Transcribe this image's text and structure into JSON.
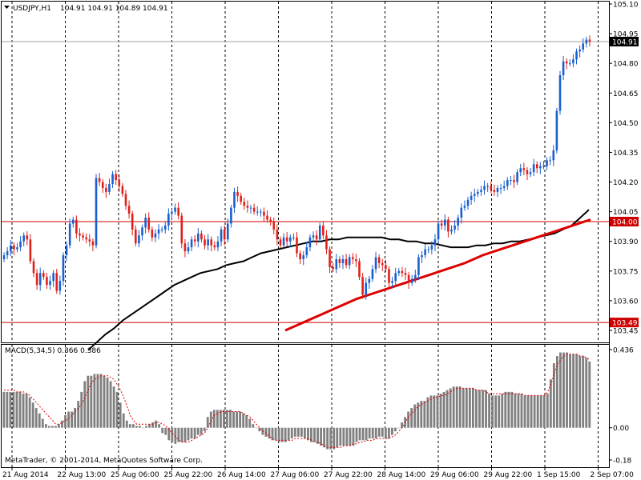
{
  "chart_data": {
    "type": "candlestick",
    "title": "USDJPY,H1",
    "ohlc_header": "104.91 104.91 104.89 104.91",
    "symbol": "USDJPY",
    "timeframe": "H1",
    "price_axis": {
      "ylim": [
        103.42,
        105.1
      ],
      "ticks": [
        "105.10",
        "104.95",
        "104.80",
        "104.65",
        "104.50",
        "104.35",
        "104.20",
        "104.05",
        "103.90",
        "103.75",
        "103.60",
        "103.45"
      ]
    },
    "current_price": {
      "value": 104.91,
      "label": "104.91"
    },
    "horizontal_levels": [
      {
        "value": 104.0,
        "label": "104.00",
        "color": "#cc0000"
      },
      {
        "value": 103.49,
        "label": "103.49",
        "color": "#cc0000"
      }
    ],
    "time_axis": {
      "labels": [
        "21 Aug 2014",
        "22 Aug 13:00",
        "25 Aug 06:00",
        "25 Aug 22:00",
        "26 Aug 14:00",
        "27 Aug 06:00",
        "27 Aug 22:00",
        "28 Aug 14:00",
        "29 Aug 06:00",
        "29 Aug 22:00",
        "1 Sep 15:00",
        "2 Sep 07:00"
      ]
    },
    "candles_close": [
      103.83,
      103.85,
      103.88,
      103.86,
      103.87,
      103.9,
      103.93,
      103.91,
      103.8,
      103.74,
      103.68,
      103.74,
      103.72,
      103.68,
      103.7,
      103.74,
      103.65,
      103.7,
      103.83,
      103.88,
      103.99,
      104.01,
      103.94,
      103.93,
      103.92,
      103.91,
      103.9,
      103.88,
      104.22,
      104.2,
      104.17,
      104.15,
      104.19,
      104.24,
      104.21,
      104.18,
      104.14,
      104.08,
      104.04,
      103.96,
      103.89,
      103.93,
      103.97,
      104.02,
      103.96,
      103.92,
      103.94,
      103.96,
      103.96,
      103.98,
      104.04,
      104.05,
      104.07,
      104.03,
      103.89,
      103.85,
      103.87,
      103.91,
      103.9,
      103.94,
      103.91,
      103.88,
      103.91,
      103.88,
      103.87,
      103.9,
      103.96,
      103.91,
      103.99,
      104.07,
      104.15,
      104.13,
      104.1,
      104.08,
      104.07,
      104.07,
      104.05,
      104.05,
      104.05,
      104.03,
      104.01,
      104.0,
      103.96,
      103.91,
      103.88,
      103.92,
      103.9,
      103.92,
      103.92,
      103.84,
      103.81,
      103.83,
      103.87,
      103.92,
      103.93,
      103.91,
      103.98,
      103.93,
      103.86,
      103.77,
      103.76,
      103.81,
      103.79,
      103.81,
      103.78,
      103.82,
      103.81,
      103.8,
      103.72,
      103.63,
      103.69,
      103.71,
      103.76,
      103.82,
      103.79,
      103.78,
      103.76,
      103.69,
      103.7,
      103.74,
      103.75,
      103.74,
      103.73,
      103.69,
      103.71,
      103.73,
      103.82,
      103.83,
      103.86,
      103.86,
      103.88,
      103.91,
      103.99,
      103.98,
      104.01,
      103.95,
      103.96,
      103.98,
      104.02,
      104.07,
      104.08,
      104.11,
      104.13,
      104.14,
      104.15,
      104.16,
      104.18,
      104.18,
      104.16,
      104.15,
      104.17,
      104.17,
      104.18,
      104.21,
      104.21,
      104.2,
      104.25,
      104.27,
      104.26,
      104.24,
      104.25,
      104.29,
      104.27,
      104.28,
      104.28,
      104.31,
      104.31,
      104.36,
      104.56,
      104.74,
      104.81,
      104.8,
      104.8,
      104.82,
      104.86,
      104.87,
      104.9,
      104.92,
      104.91
    ],
    "moving_averages": [
      {
        "color": "#000000",
        "values": [
          103.35,
          103.39,
          103.43,
          103.46,
          103.5,
          103.53,
          103.56,
          103.59,
          103.62,
          103.65,
          103.68,
          103.7,
          103.72,
          103.74,
          103.75,
          103.76,
          103.78,
          103.79,
          103.8,
          103.82,
          103.84,
          103.85,
          103.86,
          103.87,
          103.88,
          103.89,
          103.9,
          103.9,
          103.91,
          103.91,
          103.92,
          103.92,
          103.92,
          103.92,
          103.92,
          103.91,
          103.91,
          103.9,
          103.9,
          103.89,
          103.89,
          103.88,
          103.87,
          103.87,
          103.87,
          103.88,
          103.88,
          103.89,
          103.89,
          103.9,
          103.9,
          103.91,
          103.92,
          103.93,
          103.94,
          103.96,
          103.98,
          104.02,
          104.06
        ]
      },
      {
        "color": "#dd0000",
        "values": [
          103.45,
          103.49,
          103.53,
          103.57,
          103.61,
          103.64,
          103.67,
          103.7,
          103.73,
          103.76,
          103.79,
          103.83,
          103.86,
          103.89,
          103.92,
          103.95,
          103.98,
          104.01
        ]
      }
    ],
    "indicator": {
      "name": "MACD(5,34,5)",
      "label": "MACD(5,34,5) 0.366 0.386",
      "ylim": [
        -0.18,
        0.436
      ],
      "ticks": [
        "0.436",
        "0.00",
        "-0.18"
      ],
      "histogram": [
        0.2,
        0.2,
        0.2,
        0.2,
        0.2,
        0.2,
        0.19,
        0.19,
        0.17,
        0.14,
        0.11,
        0.08,
        0.05,
        0.02,
        0.01,
        0.01,
        0.01,
        0.02,
        0.04,
        0.07,
        0.09,
        0.09,
        0.11,
        0.15,
        0.2,
        0.26,
        0.29,
        0.29,
        0.3,
        0.3,
        0.3,
        0.29,
        0.28,
        0.26,
        0.23,
        0.2,
        0.14,
        0.08,
        0.04,
        0.02,
        0.02,
        0.01,
        0.01,
        0.0,
        0.01,
        0.02,
        0.03,
        0.04,
        0.02,
        -0.03,
        -0.04,
        -0.07,
        -0.08,
        -0.09,
        -0.08,
        -0.08,
        -0.08,
        -0.07,
        -0.06,
        -0.06,
        -0.04,
        -0.04,
        -0.02,
        0.06,
        0.09,
        0.1,
        0.1,
        0.1,
        0.1,
        0.1,
        0.1,
        0.09,
        0.09,
        0.09,
        0.08,
        0.07,
        0.05,
        0.02,
        0.0,
        -0.02,
        -0.04,
        -0.05,
        -0.06,
        -0.07,
        -0.07,
        -0.08,
        -0.08,
        -0.08,
        -0.07,
        -0.06,
        -0.05,
        -0.05,
        -0.05,
        -0.06,
        -0.07,
        -0.08,
        -0.08,
        -0.09,
        -0.1,
        -0.11,
        -0.12,
        -0.12,
        -0.12,
        -0.11,
        -0.1,
        -0.1,
        -0.1,
        -0.1,
        -0.1,
        -0.08,
        -0.07,
        -0.07,
        -0.07,
        -0.06,
        -0.06,
        -0.06,
        -0.05,
        -0.05,
        -0.06,
        -0.06,
        -0.04,
        -0.02,
        0.0,
        0.03,
        0.06,
        0.09,
        0.11,
        0.13,
        0.14,
        0.15,
        0.15,
        0.17,
        0.18,
        0.18,
        0.18,
        0.19,
        0.2,
        0.21,
        0.22,
        0.23,
        0.23,
        0.23,
        0.22,
        0.22,
        0.22,
        0.22,
        0.21,
        0.21,
        0.21,
        0.21,
        0.19,
        0.18,
        0.18,
        0.18,
        0.19,
        0.2,
        0.2,
        0.2,
        0.19,
        0.19,
        0.19,
        0.18,
        0.18,
        0.18,
        0.18,
        0.18,
        0.18,
        0.18,
        0.19,
        0.27,
        0.36,
        0.4,
        0.42,
        0.42,
        0.42,
        0.41,
        0.41,
        0.41,
        0.4,
        0.4,
        0.39,
        0.37
      ],
      "signal": [
        0.21,
        0.21,
        0.21,
        0.21,
        0.2,
        0.2,
        0.2,
        0.19,
        0.18,
        0.16,
        0.14,
        0.12,
        0.1,
        0.08,
        0.06,
        0.04,
        0.02,
        0.02,
        0.03,
        0.04,
        0.05,
        0.07,
        0.09,
        0.11,
        0.13,
        0.17,
        0.21,
        0.25,
        0.27,
        0.28,
        0.29,
        0.29,
        0.29,
        0.28,
        0.27,
        0.24,
        0.21,
        0.17,
        0.12,
        0.07,
        0.04,
        0.02,
        0.02,
        0.02,
        0.02,
        0.02,
        0.02,
        0.03,
        0.03,
        0.02,
        0.01,
        -0.01,
        -0.03,
        -0.05,
        -0.07,
        -0.08,
        -0.08,
        -0.08,
        -0.07,
        -0.06,
        -0.05,
        -0.04,
        -0.03,
        0.0,
        0.04,
        0.07,
        0.08,
        0.09,
        0.09,
        0.09,
        0.09,
        0.09,
        0.09,
        0.09,
        0.08,
        0.07,
        0.06,
        0.04,
        0.02,
        0.0,
        -0.02,
        -0.03,
        -0.05,
        -0.06,
        -0.07,
        -0.07,
        -0.07,
        -0.07,
        -0.07,
        -0.07,
        -0.06,
        -0.06,
        -0.06,
        -0.06,
        -0.06,
        -0.07,
        -0.08,
        -0.08,
        -0.09,
        -0.1,
        -0.11,
        -0.11,
        -0.11,
        -0.11,
        -0.11,
        -0.1,
        -0.1,
        -0.1,
        -0.09,
        -0.09,
        -0.08,
        -0.08,
        -0.07,
        -0.07,
        -0.07,
        -0.06,
        -0.06,
        -0.06,
        -0.06,
        -0.06,
        -0.05,
        -0.04,
        -0.02,
        0.0,
        0.03,
        0.06,
        0.08,
        0.1,
        0.12,
        0.13,
        0.14,
        0.15,
        0.16,
        0.17,
        0.17,
        0.18,
        0.18,
        0.19,
        0.2,
        0.21,
        0.22,
        0.22,
        0.22,
        0.22,
        0.22,
        0.22,
        0.21,
        0.21,
        0.21,
        0.2,
        0.19,
        0.19,
        0.19,
        0.19,
        0.19,
        0.19,
        0.19,
        0.19,
        0.19,
        0.19,
        0.19,
        0.18,
        0.18,
        0.18,
        0.18,
        0.18,
        0.18,
        0.18,
        0.2,
        0.24,
        0.3,
        0.35,
        0.38,
        0.4,
        0.41,
        0.41,
        0.41,
        0.41,
        0.4,
        0.4,
        0.39,
        0.38
      ]
    },
    "colors": {
      "bull": "#1a5fd0",
      "bear": "#e0201a",
      "macd_bar": "#808080",
      "signal": "#dd0000"
    }
  },
  "footer": {
    "copyright": "MetaTrader, © 2001-2014, MetaQuotes Software Corp."
  }
}
